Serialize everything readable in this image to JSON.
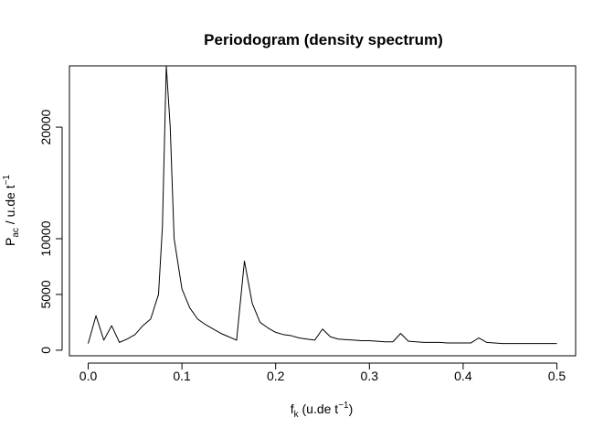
{
  "chart_data": {
    "type": "line",
    "title": "Periodogram (density spectrum)",
    "xlabel": {
      "main": "f",
      "sub": "k",
      "rest": " (u.de t",
      "sup": "−1",
      "close": ")"
    },
    "ylabel": {
      "main": "P",
      "sub": "ac",
      "rest": " / u.de t",
      "sup": "−1"
    },
    "xlim": [
      -0.02,
      0.52
    ],
    "ylim": [
      -500,
      25500
    ],
    "xticks": [
      0,
      0.1,
      0.2,
      0.3,
      0.4,
      0.5
    ],
    "xtick_labels": [
      "0.0",
      "0.1",
      "0.2",
      "0.3",
      "0.4",
      "0.5"
    ],
    "yticks": [
      0,
      5000,
      10000,
      20000
    ],
    "ytick_labels": [
      "0",
      "5000",
      "10000",
      "20000"
    ],
    "grid": false,
    "series": [
      {
        "color": "#000000",
        "x": [
          0,
          0.00833,
          0.01667,
          0.025,
          0.03333,
          0.04167,
          0.05,
          0.05833,
          0.06667,
          0.075,
          0.07917,
          0.08333,
          0.0875,
          0.09167,
          0.1,
          0.10833,
          0.11667,
          0.125,
          0.13333,
          0.14167,
          0.15,
          0.15833,
          0.16667,
          0.175,
          0.18333,
          0.19167,
          0.2,
          0.20833,
          0.21667,
          0.225,
          0.23333,
          0.24167,
          0.25,
          0.25833,
          0.26667,
          0.275,
          0.28333,
          0.29167,
          0.3,
          0.30833,
          0.31667,
          0.325,
          0.33333,
          0.34167,
          0.35,
          0.35833,
          0.36667,
          0.375,
          0.38333,
          0.39167,
          0.4,
          0.40833,
          0.41667,
          0.425,
          0.43333,
          0.44167,
          0.45,
          0.45833,
          0.46667,
          0.475,
          0.48333,
          0.49167,
          0.5
        ],
        "y": [
          600,
          3100,
          900,
          2200,
          700,
          1000,
          1400,
          2200,
          2800,
          5000,
          11000,
          25500,
          20000,
          10000,
          5500,
          3800,
          2800,
          2300,
          1900,
          1500,
          1200,
          900,
          8000,
          4200,
          2500,
          2000,
          1600,
          1400,
          1300,
          1100,
          1000,
          900,
          1900,
          1200,
          1000,
          950,
          900,
          850,
          850,
          800,
          750,
          750,
          1500,
          800,
          750,
          700,
          700,
          700,
          650,
          650,
          650,
          650,
          1100,
          700,
          650,
          600,
          600,
          600,
          600,
          600,
          600,
          600,
          600
        ]
      }
    ]
  }
}
